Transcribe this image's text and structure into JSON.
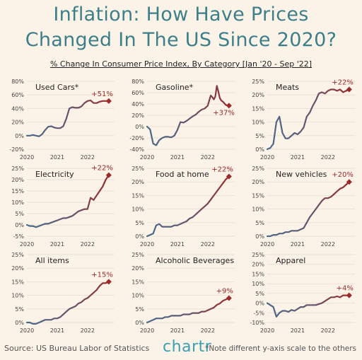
{
  "header": {
    "title_line1": "Inflation: How Have Prices",
    "title_line2": "Changed In The US Since 2020?",
    "subtitle": "% Change In Consumer Price Index, By Category [Jan '20 - Sep '22]"
  },
  "footer": {
    "source": "Source: US Bureau Labor of Statistics",
    "logo": "chartr",
    "note": "*Note different y-axis scale to the others"
  },
  "colors": {
    "line_start": "#4a6a8c",
    "line_end": "#9b2a2a",
    "end_label": "#9b2a2a",
    "axis_text": "#444444",
    "grid": "#e5ddd0",
    "panel_title": "#222222"
  },
  "chart_data": [
    {
      "type": "line",
      "title": "Used Cars*",
      "x_ticks": [
        "2020",
        "2021",
        "2022"
      ],
      "y_ticks": [
        "-20%",
        "0%",
        "20%",
        "40%",
        "60%",
        "80%"
      ],
      "ylim": [
        -20,
        80
      ],
      "x": [
        2020.0,
        2020.1,
        2020.2,
        2020.3,
        2020.4,
        2020.5,
        2020.6,
        2020.7,
        2020.8,
        2020.9,
        2021.0,
        2021.1,
        2021.2,
        2021.3,
        2021.4,
        2021.5,
        2021.6,
        2021.7,
        2021.8,
        2021.9,
        2022.0,
        2022.1,
        2022.2,
        2022.3,
        2022.4,
        2022.5,
        2022.6,
        2022.7
      ],
      "values": [
        0,
        0,
        1,
        0,
        -1,
        2,
        8,
        13,
        14,
        12,
        11,
        11,
        14,
        25,
        40,
        42,
        41,
        41,
        43,
        48,
        51,
        52,
        48,
        48,
        50,
        51,
        51,
        51
      ],
      "end_label": "+51%"
    },
    {
      "type": "line",
      "title": "Gasoline*",
      "x_ticks": [
        "2020",
        "2021",
        "2022"
      ],
      "y_ticks": [
        "-40%",
        "-20%",
        "0%",
        "20%",
        "40%",
        "60%",
        "80%"
      ],
      "ylim": [
        -40,
        80
      ],
      "x": [
        2020.0,
        2020.1,
        2020.2,
        2020.3,
        2020.4,
        2020.5,
        2020.6,
        2020.7,
        2020.8,
        2020.9,
        2021.0,
        2021.1,
        2021.2,
        2021.3,
        2021.4,
        2021.5,
        2021.6,
        2021.7,
        2021.8,
        2021.9,
        2022.0,
        2022.1,
        2022.15,
        2022.2,
        2022.25,
        2022.3,
        2022.35,
        2022.4,
        2022.45,
        2022.5,
        2022.6,
        2022.7
      ],
      "values": [
        0,
        -5,
        -30,
        -33,
        -24,
        -20,
        -18,
        -18,
        -19,
        -16,
        -6,
        8,
        7,
        10,
        14,
        18,
        21,
        26,
        30,
        32,
        37,
        55,
        52,
        48,
        53,
        72,
        62,
        50,
        46,
        44,
        38,
        37
      ],
      "end_label": "+37%"
    },
    {
      "type": "line",
      "title": "Meats",
      "x_ticks": [
        "2020",
        "2021",
        "2022"
      ],
      "y_ticks": [
        "0%",
        "5%",
        "10%",
        "15%",
        "20%",
        "25%"
      ],
      "ylim": [
        0,
        25
      ],
      "x": [
        2020.0,
        2020.1,
        2020.2,
        2020.3,
        2020.4,
        2020.5,
        2020.6,
        2020.7,
        2020.8,
        2020.9,
        2021.0,
        2021.1,
        2021.2,
        2021.3,
        2021.4,
        2021.5,
        2021.6,
        2021.7,
        2021.8,
        2021.9,
        2022.0,
        2022.1,
        2022.2,
        2022.3,
        2022.4,
        2022.5,
        2022.6,
        2022.7
      ],
      "values": [
        0,
        0.5,
        2,
        10,
        12,
        6,
        4,
        4,
        5,
        6,
        5.5,
        6.5,
        8,
        12,
        13.5,
        16,
        18,
        20.5,
        21,
        20.5,
        21.5,
        22,
        22,
        21.5,
        22,
        21,
        21.5,
        22
      ],
      "end_label": "+22%"
    },
    {
      "type": "line",
      "title": "Electricity",
      "x_ticks": [
        "2020",
        "2021",
        "2022"
      ],
      "y_ticks": [
        "-5%",
        "0%",
        "5%",
        "10%",
        "15%",
        "20%",
        "25%"
      ],
      "ylim": [
        -5,
        25
      ],
      "x": [
        2020.0,
        2020.1,
        2020.2,
        2020.3,
        2020.4,
        2020.5,
        2020.6,
        2020.7,
        2020.8,
        2020.9,
        2021.0,
        2021.1,
        2021.2,
        2021.3,
        2021.4,
        2021.5,
        2021.6,
        2021.7,
        2021.8,
        2021.9,
        2022.0,
        2022.1,
        2022.2,
        2022.3,
        2022.4,
        2022.5,
        2022.6,
        2022.7
      ],
      "values": [
        0,
        -0.5,
        -0.5,
        -1,
        -0.5,
        0,
        0.5,
        0.5,
        1,
        1.5,
        2,
        2.5,
        3,
        3,
        3.5,
        4,
        5,
        6,
        6.5,
        7,
        7,
        12,
        11,
        13,
        15,
        17,
        20,
        22
      ],
      "end_label": "+22%"
    },
    {
      "type": "line",
      "title": "Food at home",
      "x_ticks": [
        "2020",
        "2021",
        "2022"
      ],
      "y_ticks": [
        "0%",
        "5%",
        "10%",
        "15%",
        "20%",
        "25%"
      ],
      "ylim": [
        0,
        25
      ],
      "x": [
        2020.0,
        2020.1,
        2020.2,
        2020.3,
        2020.4,
        2020.5,
        2020.6,
        2020.7,
        2020.8,
        2020.9,
        2021.0,
        2021.1,
        2021.2,
        2021.3,
        2021.4,
        2021.5,
        2021.6,
        2021.7,
        2021.8,
        2021.9,
        2022.0,
        2022.1,
        2022.2,
        2022.3,
        2022.4,
        2022.5,
        2022.6,
        2022.7
      ],
      "values": [
        0,
        0.5,
        1,
        4,
        4.5,
        3.5,
        3.5,
        3.5,
        3.5,
        4,
        4,
        4.5,
        5,
        5.5,
        6.5,
        7,
        8,
        9,
        10,
        11,
        12,
        13.5,
        15,
        16.5,
        18,
        19.5,
        21,
        22
      ],
      "end_label": "+22%"
    },
    {
      "type": "line",
      "title": "New vehicles",
      "x_ticks": [
        "2020",
        "2021",
        "2022"
      ],
      "y_ticks": [
        "0%",
        "5%",
        "10%",
        "15%",
        "20%",
        "25%"
      ],
      "ylim": [
        0,
        25
      ],
      "x": [
        2020.0,
        2020.1,
        2020.2,
        2020.3,
        2020.4,
        2020.5,
        2020.6,
        2020.7,
        2020.8,
        2020.9,
        2021.0,
        2021.1,
        2021.2,
        2021.3,
        2021.4,
        2021.5,
        2021.6,
        2021.7,
        2021.8,
        2021.9,
        2022.0,
        2022.1,
        2022.2,
        2022.3,
        2022.4,
        2022.5,
        2022.6,
        2022.7
      ],
      "values": [
        0,
        0,
        0.5,
        0.5,
        1,
        1,
        1.5,
        1.5,
        2,
        2,
        2,
        2.5,
        3,
        5,
        7,
        8.5,
        10,
        11.5,
        13,
        14,
        14,
        14.5,
        15.5,
        16.5,
        17.5,
        18,
        19,
        20
      ],
      "end_label": "+20%"
    },
    {
      "type": "line",
      "title": "All items",
      "x_ticks": [
        "2020",
        "2021",
        "2022"
      ],
      "y_ticks": [
        "0%",
        "5%",
        "10%",
        "15%",
        "20%",
        "25%"
      ],
      "ylim": [
        0,
        25
      ],
      "x": [
        2020.0,
        2020.1,
        2020.2,
        2020.3,
        2020.4,
        2020.5,
        2020.6,
        2020.7,
        2020.8,
        2020.9,
        2021.0,
        2021.1,
        2021.2,
        2021.3,
        2021.4,
        2021.5,
        2021.6,
        2021.7,
        2021.8,
        2021.9,
        2022.0,
        2022.1,
        2022.2,
        2022.3,
        2022.4,
        2022.5,
        2022.6,
        2022.7
      ],
      "values": [
        0,
        0,
        -0.5,
        -0.5,
        0,
        0.5,
        1,
        1,
        1,
        1.5,
        1.5,
        2,
        3,
        4,
        5,
        5.5,
        6,
        7,
        7.5,
        8.5,
        9,
        10,
        11,
        12,
        13.5,
        14.5,
        14.5,
        15
      ],
      "end_label": "+15%"
    },
    {
      "type": "line",
      "title": "Alcoholic Beverages",
      "x_ticks": [
        "2020",
        "2021",
        "2022"
      ],
      "y_ticks": [
        "0%",
        "5%",
        "10%",
        "15%",
        "20%",
        "25%"
      ],
      "ylim": [
        0,
        25
      ],
      "x": [
        2020.0,
        2020.1,
        2020.2,
        2020.3,
        2020.4,
        2020.5,
        2020.6,
        2020.7,
        2020.8,
        2020.9,
        2021.0,
        2021.1,
        2021.2,
        2021.3,
        2021.4,
        2021.5,
        2021.6,
        2021.7,
        2021.8,
        2021.9,
        2022.0,
        2022.1,
        2022.2,
        2022.3,
        2022.4,
        2022.5,
        2022.6,
        2022.7
      ],
      "values": [
        0,
        0.5,
        1,
        1.5,
        1.5,
        1.5,
        2,
        2,
        2.5,
        2.5,
        2.5,
        2.5,
        3,
        3,
        3,
        3.5,
        3.5,
        3.5,
        4,
        4,
        4.5,
        5,
        5.5,
        6.5,
        7,
        8,
        8.5,
        9
      ],
      "end_label": "+9%"
    },
    {
      "type": "line",
      "title": "Apparel",
      "x_ticks": [
        "2020",
        "2021",
        "2022"
      ],
      "y_ticks": [
        "-10%",
        "-5%",
        "0%",
        "5%",
        "10%",
        "15%",
        "20%",
        "25%"
      ],
      "ylim": [
        -10,
        25
      ],
      "x": [
        2020.0,
        2020.1,
        2020.2,
        2020.3,
        2020.4,
        2020.5,
        2020.6,
        2020.7,
        2020.8,
        2020.9,
        2021.0,
        2021.1,
        2021.2,
        2021.3,
        2021.4,
        2021.5,
        2021.6,
        2021.7,
        2021.8,
        2021.9,
        2022.0,
        2022.1,
        2022.2,
        2022.3,
        2022.4,
        2022.5,
        2022.6,
        2022.7
      ],
      "values": [
        0,
        -1,
        -2,
        -7,
        -5,
        -4,
        -4,
        -4.5,
        -3.5,
        -4,
        -3,
        -2,
        -2,
        -1,
        -1,
        -1,
        -1,
        -0.5,
        0,
        1,
        2,
        3,
        3,
        3.5,
        3,
        4,
        4,
        4
      ],
      "end_label": "+4%"
    }
  ]
}
